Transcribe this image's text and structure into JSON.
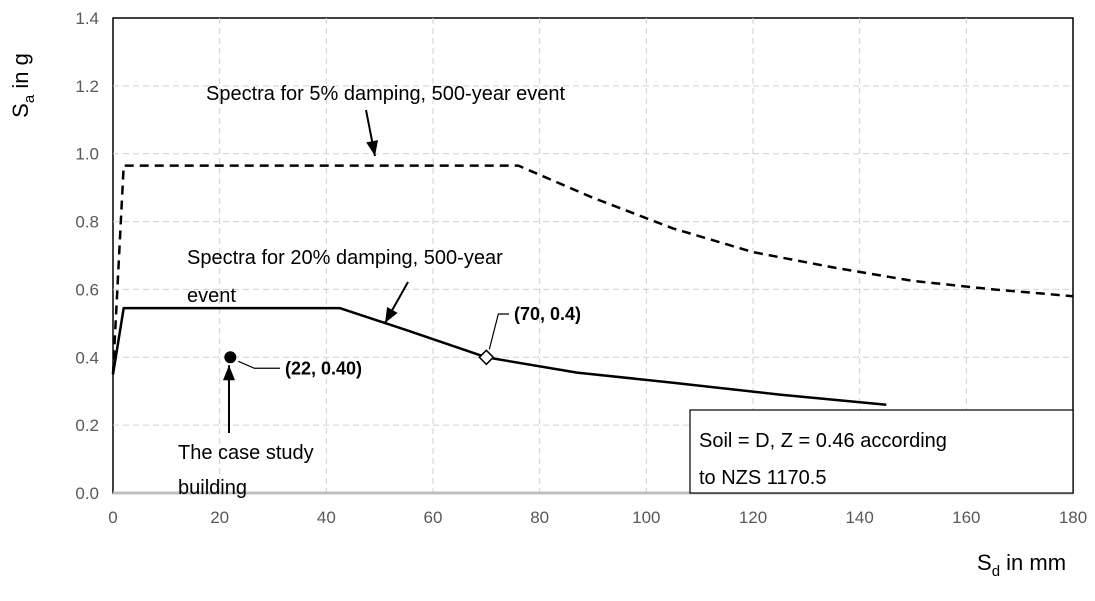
{
  "chart_data": {
    "type": "line",
    "xlabel": {
      "main": "S",
      "sub": "d",
      "rest": " in mm"
    },
    "ylabel": {
      "main": "S",
      "sub": "a",
      "rest": " in g"
    },
    "xlim": [
      0,
      180
    ],
    "ylim": [
      0,
      1.4
    ],
    "x_ticks": [
      0,
      20,
      40,
      60,
      80,
      100,
      120,
      140,
      160,
      180
    ],
    "y_ticks": [
      "0.0",
      "0.2",
      "0.4",
      "0.6",
      "0.8",
      "1.0",
      "1.2",
      "1.4"
    ],
    "grid": true,
    "series": [
      {
        "name": "Spectra for 5% damping, 500-year event",
        "style": "dashed",
        "color": "#000000",
        "points": [
          [
            0,
            0.35
          ],
          [
            2,
            0.965
          ],
          [
            76,
            0.965
          ],
          [
            90,
            0.87
          ],
          [
            105,
            0.78
          ],
          [
            120,
            0.71
          ],
          [
            135,
            0.665
          ],
          [
            150,
            0.625
          ],
          [
            165,
            0.6
          ],
          [
            180,
            0.58
          ]
        ]
      },
      {
        "name": "Spectra for 20% damping, 500-year event",
        "style": "solid",
        "color": "#000000",
        "points": [
          [
            0,
            0.35
          ],
          [
            2,
            0.545
          ],
          [
            42.5,
            0.545
          ],
          [
            55,
            0.48
          ],
          [
            70,
            0.4
          ],
          [
            87,
            0.355
          ],
          [
            105,
            0.325
          ],
          [
            125,
            0.29
          ],
          [
            145,
            0.26
          ]
        ]
      }
    ],
    "markers": [
      {
        "x": 22,
        "y": 0.4,
        "shape": "filled-circle",
        "label": "(22, 0.40)"
      },
      {
        "x": 70,
        "y": 0.4,
        "shape": "open-diamond",
        "label": "(70, 0.4)"
      }
    ],
    "annotations": {
      "spectra_5": "Spectra for 5% damping, 500-year event",
      "spectra_20_line1": "Spectra for 20% damping, 500-year",
      "spectra_20_line2": "event",
      "case_study_line1": "The case study",
      "case_study_line2": "building",
      "soil_line1": "Soil = D,  Z = 0.46 according",
      "soil_line2": "to NZS 1170.5"
    }
  }
}
